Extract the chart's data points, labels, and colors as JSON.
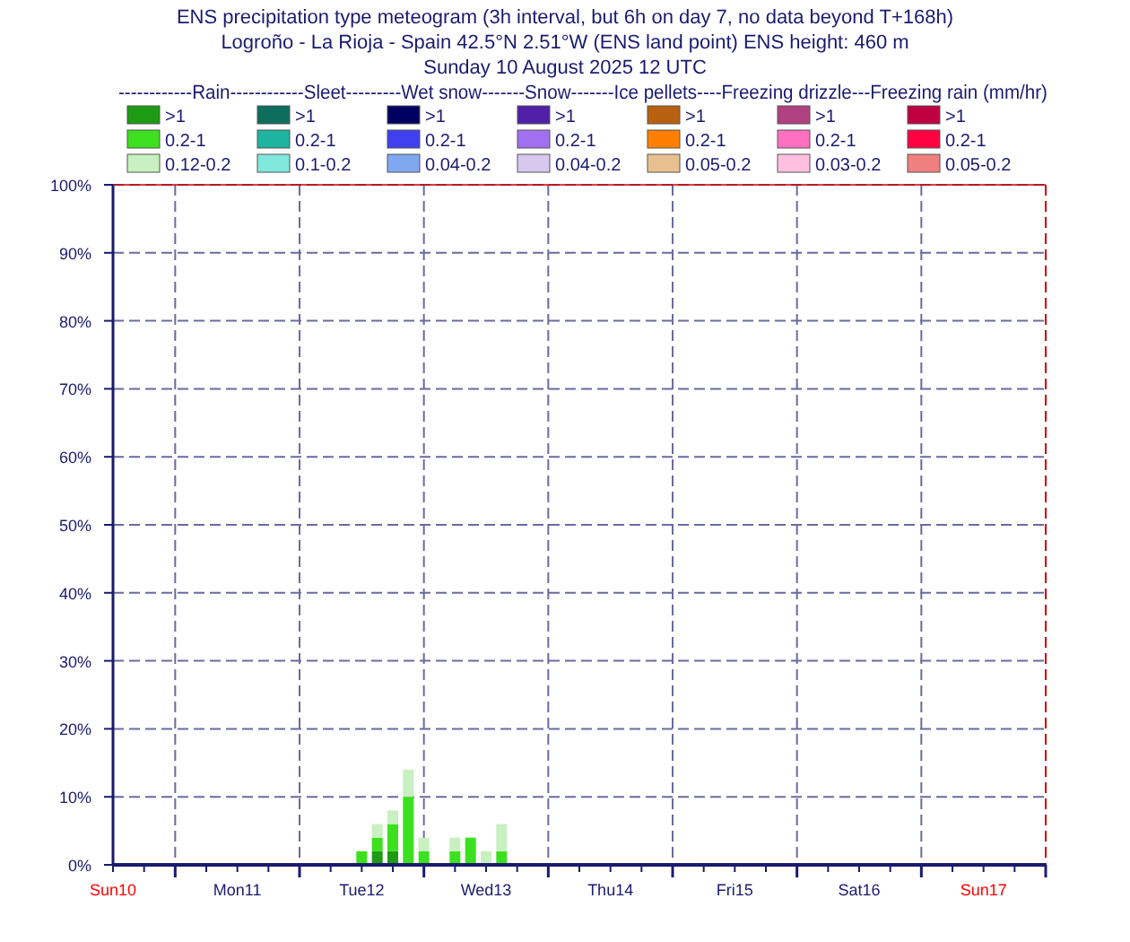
{
  "chart_data": {
    "type": "bar",
    "title": "ENS precipitation type meteogram (3h interval, but 6h on day 7, no data beyond T+168h)",
    "subtitle": "Logroño - La Rioja - Spain 42.5°N 2.51°W (ENS land point) ENS height: 460 m\nSunday 10 August 2025 12 UTC",
    "legend_title": "------------Rain------------Sleet---------Wet snow-------Snow-------Ice pellets----Freezing drizzle---Freezing rain (mm/hr)",
    "legend": "top",
    "stacked": true,
    "grid": true,
    "x": [
      "2025-08-12T12:00",
      "2025-08-12T15:00",
      "2025-08-12T18:00",
      "2025-08-12T21:00",
      "2025-08-13T00:00",
      "2025-08-13T06:00",
      "2025-08-13T09:00",
      "2025-08-13T12:00",
      "2025-08-13T15:00"
    ],
    "series": [
      {
        "name": ">1",
        "color": "#1e9a14",
        "values": [
          null,
          2,
          2,
          null,
          null,
          null,
          null,
          null,
          null
        ]
      },
      {
        "name": "0.2-1",
        "color": "#3ce01e",
        "values": [
          2,
          2,
          4,
          10,
          2,
          2,
          4,
          null,
          2
        ]
      },
      {
        "name": "0.12-0.2",
        "color": "#c8f0c0",
        "values": [
          null,
          2,
          2,
          4,
          2,
          2,
          null,
          2,
          4
        ]
      },
      {
        "name": ">1",
        "color": "#0e6e5e",
        "values": [
          null,
          null,
          null,
          null,
          null,
          null,
          null,
          null,
          null
        ]
      },
      {
        "name": "0.2-1",
        "color": "#1eb4a0",
        "values": [
          null,
          null,
          null,
          null,
          null,
          null,
          null,
          null,
          null
        ]
      },
      {
        "name": "0.1-0.2",
        "color": "#80e8dc",
        "values": [
          null,
          null,
          null,
          null,
          null,
          null,
          null,
          null,
          null
        ]
      },
      {
        "name": ">1",
        "color": "#000060",
        "values": [
          null,
          null,
          null,
          null,
          null,
          null,
          null,
          null,
          null
        ]
      },
      {
        "name": "0.2-1",
        "color": "#4040f0",
        "values": [
          null,
          null,
          null,
          null,
          null,
          null,
          null,
          null,
          null
        ]
      },
      {
        "name": "0.04-0.2",
        "color": "#80a8f0",
        "values": [
          null,
          null,
          null,
          null,
          null,
          null,
          null,
          null,
          null
        ]
      },
      {
        "name": ">1",
        "color": "#5020a8",
        "values": [
          null,
          null,
          null,
          null,
          null,
          null,
          null,
          null,
          null
        ]
      },
      {
        "name": "0.2-1",
        "color": "#a070f0",
        "values": [
          null,
          null,
          null,
          null,
          null,
          null,
          null,
          null,
          null
        ]
      },
      {
        "name": "0.04-0.2",
        "color": "#d8c8f0",
        "values": [
          null,
          null,
          null,
          null,
          null,
          null,
          null,
          null,
          null
        ]
      },
      {
        "name": ">1",
        "color": "#b86010",
        "values": [
          null,
          null,
          null,
          null,
          null,
          null,
          null,
          null,
          null
        ]
      },
      {
        "name": "0.2-1",
        "color": "#ff8000",
        "values": [
          null,
          null,
          null,
          null,
          null,
          null,
          null,
          null,
          null
        ]
      },
      {
        "name": "0.05-0.2",
        "color": "#e8c090",
        "values": [
          null,
          null,
          null,
          null,
          null,
          null,
          null,
          null,
          null
        ]
      },
      {
        "name": ">1",
        "color": "#b04080",
        "values": [
          null,
          null,
          null,
          null,
          null,
          null,
          null,
          null,
          null
        ]
      },
      {
        "name": "0.2-1",
        "color": "#ff70c0",
        "values": [
          null,
          null,
          null,
          null,
          null,
          null,
          null,
          null,
          null
        ]
      },
      {
        "name": "0.03-0.2",
        "color": "#ffc0e0",
        "values": [
          null,
          null,
          null,
          null,
          null,
          null,
          null,
          null,
          null
        ]
      },
      {
        "name": ">1",
        "color": "#c00040",
        "values": [
          null,
          null,
          null,
          null,
          null,
          null,
          null,
          null,
          null
        ]
      },
      {
        "name": "0.2-1",
        "color": "#ff0040",
        "values": [
          null,
          null,
          null,
          null,
          null,
          null,
          null,
          null,
          null
        ]
      },
      {
        "name": "0.05-0.2",
        "color": "#f08080",
        "values": [
          null,
          null,
          null,
          null,
          null,
          null,
          null,
          null,
          null
        ]
      }
    ],
    "ylim": [
      0,
      100
    ],
    "yticks": [
      {
        "value": 0,
        "label": "0%"
      },
      {
        "value": 10,
        "label": "10%"
      },
      {
        "value": 20,
        "label": "20%"
      },
      {
        "value": 30,
        "label": "30%"
      },
      {
        "value": 40,
        "label": "40%"
      },
      {
        "value": 50,
        "label": "50%"
      },
      {
        "value": 60,
        "label": "60%"
      },
      {
        "value": 70,
        "label": "70%"
      },
      {
        "value": 80,
        "label": "80%"
      },
      {
        "value": 90,
        "label": "90%"
      },
      {
        "value": 100,
        "label": "100%"
      }
    ],
    "xlim": [
      "2025-08-10T12:00",
      "2025-08-18T00:00"
    ],
    "xticks": [
      {
        "value": "2025-08-10T12:00",
        "label": "Sun10"
      },
      {
        "value": "2025-08-10T18:00",
        "label": null
      },
      {
        "value": "2025-08-11T00:00",
        "label": null
      },
      {
        "value": "2025-08-11T06:00",
        "label": null
      },
      {
        "value": "2025-08-11T12:00",
        "label": "Mon11"
      },
      {
        "value": "2025-08-11T18:00",
        "label": null
      },
      {
        "value": "2025-08-12T00:00",
        "label": null
      },
      {
        "value": "2025-08-12T06:00",
        "label": null
      },
      {
        "value": "2025-08-12T12:00",
        "label": "Tue12"
      },
      {
        "value": "2025-08-12T18:00",
        "label": null
      },
      {
        "value": "2025-08-13T00:00",
        "label": null
      },
      {
        "value": "2025-08-13T06:00",
        "label": null
      },
      {
        "value": "2025-08-13T12:00",
        "label": "Wed13"
      },
      {
        "value": "2025-08-13T18:00",
        "label": null
      },
      {
        "value": "2025-08-14T00:00",
        "label": null
      },
      {
        "value": "2025-08-14T06:00",
        "label": null
      },
      {
        "value": "2025-08-14T12:00",
        "label": "Thu14"
      },
      {
        "value": "2025-08-14T18:00",
        "label": null
      },
      {
        "value": "2025-08-15T00:00",
        "label": null
      },
      {
        "value": "2025-08-15T06:00",
        "label": null
      },
      {
        "value": "2025-08-15T12:00",
        "label": "Fri15"
      },
      {
        "value": "2025-08-15T18:00",
        "label": null
      },
      {
        "value": "2025-08-16T00:00",
        "label": null
      },
      {
        "value": "2025-08-16T06:00",
        "label": null
      },
      {
        "value": "2025-08-16T12:00",
        "label": "Sat16"
      },
      {
        "value": "2025-08-16T18:00",
        "label": null
      },
      {
        "value": "2025-08-17T00:00",
        "label": null
      },
      {
        "value": "2025-08-17T06:00",
        "label": null
      },
      {
        "value": "2025-08-17T12:00",
        "label": "Sun17"
      },
      {
        "value": "2025-08-17T18:00",
        "label": null
      },
      {
        "value": "2025-08-18T00:00",
        "label": null
      }
    ],
    "ref_lines": [
      {
        "axis": "x",
        "value": "2025-08-18T00:00",
        "color": "#cc0000",
        "line_style": "dashed"
      }
    ]
  }
}
